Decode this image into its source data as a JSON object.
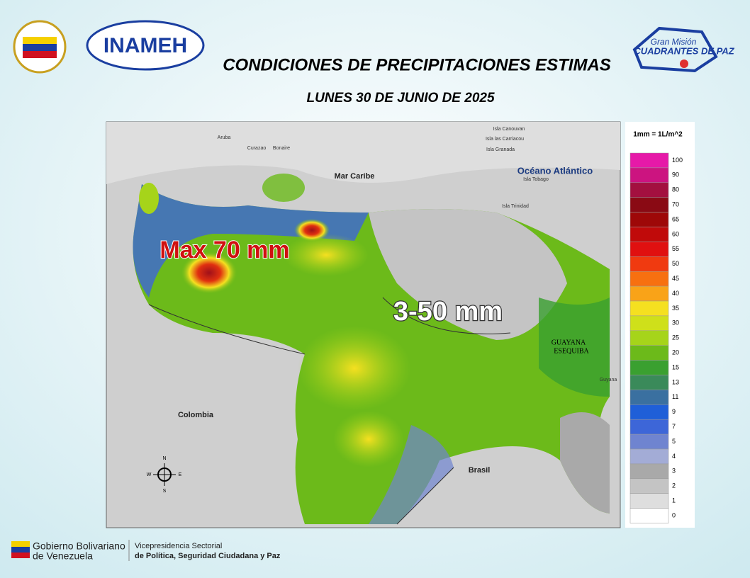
{
  "header": {
    "title": "CONDICIONES DE PRECIPITACIONES ESTIMAS",
    "date": "LUNES 30 DE JUNIO DE 2025",
    "logo_left": "INAMEH",
    "logo_right_top": "Gran Misión",
    "logo_right_bottom": "CUADRANTES DE PAZ"
  },
  "map": {
    "max_label": "Max 70 mm",
    "range_label": "3-50 mm",
    "places": [
      "Mar Caribe",
      "Océano Atlántico",
      "Colombia",
      "Brasil",
      "GUAYANA",
      "ESEQUIBA",
      "Guyana",
      "Aruba",
      "Curazao",
      "Bonaire",
      "Isla Canouvan",
      "Isla las Carriacou",
      "Isla Granada",
      "Isla Tobago",
      "Isla Trinidad"
    ],
    "compass": [
      "N",
      "S",
      "E",
      "W"
    ]
  },
  "legend": {
    "unit": "1mm = 1L/m^2",
    "items": [
      {
        "value": 100,
        "color": "#e619a8"
      },
      {
        "value": 90,
        "color": "#cc1480"
      },
      {
        "value": 80,
        "color": "#a3103f"
      },
      {
        "value": 70,
        "color": "#8a0a14"
      },
      {
        "value": 65,
        "color": "#9e0808"
      },
      {
        "value": 60,
        "color": "#c00a0a"
      },
      {
        "value": 55,
        "color": "#e01010"
      },
      {
        "value": 50,
        "color": "#f03a10"
      },
      {
        "value": 45,
        "color": "#f77010"
      },
      {
        "value": 40,
        "color": "#f9a318"
      },
      {
        "value": 35,
        "color": "#f5e020"
      },
      {
        "value": 30,
        "color": "#cfe01a"
      },
      {
        "value": 25,
        "color": "#a6d41a"
      },
      {
        "value": 20,
        "color": "#6cba1a"
      },
      {
        "value": 15,
        "color": "#3aa030"
      },
      {
        "value": 13,
        "color": "#3a8a5a"
      },
      {
        "value": 11,
        "color": "#3a70a0"
      },
      {
        "value": 9,
        "color": "#1f5fd8"
      },
      {
        "value": 7,
        "color": "#3d66d8"
      },
      {
        "value": 5,
        "color": "#6f84d0"
      },
      {
        "value": 4,
        "color": "#a3acd6"
      },
      {
        "value": 3,
        "color": "#a9a9a9"
      },
      {
        "value": 2,
        "color": "#c4c4c4"
      },
      {
        "value": 1,
        "color": "#dedede"
      },
      {
        "value": 0,
        "color": "#ffffff"
      }
    ]
  },
  "footer": {
    "gov_line1": "Gobierno Bolivariano",
    "gov_line2": "de Venezuela",
    "vice_line1": "Vicepresidencia Sectorial",
    "vice_line2": "de Política, Seguridad Ciudadana y Paz"
  }
}
